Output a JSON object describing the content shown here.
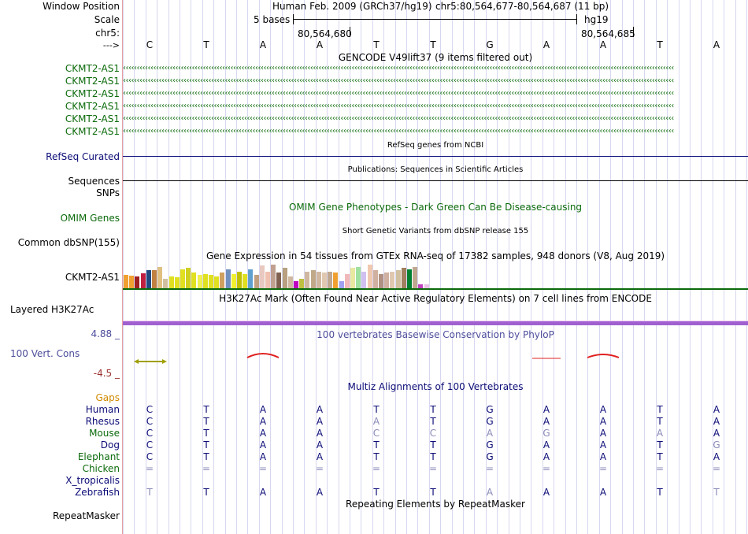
{
  "labels": {
    "window_position": "Window Position",
    "scale": "Scale",
    "chrom": "chr5:",
    "strand": "--->",
    "gencode_rows": [
      "CKMT2-AS1",
      "CKMT2-AS1",
      "CKMT2-AS1",
      "CKMT2-AS1",
      "CKMT2-AS1",
      "CKMT2-AS1"
    ],
    "refseq": "RefSeq Curated",
    "sequences": "Sequences",
    "snps": "SNPs",
    "omim": "OMIM Genes",
    "dbsnp": "Common dbSNP(155)",
    "gtex": "CKMT2-AS1",
    "h3k27ac": "Layered H3K27Ac",
    "phylop_max": "4.88 _",
    "phylop": "100 Vert. Cons",
    "phylop_min": "-4.5 _",
    "gaps": "Gaps",
    "species": [
      "Human",
      "Rhesus",
      "Mouse",
      "Dog",
      "Elephant",
      "Chicken",
      "X_tropicalis",
      "Zebrafish"
    ],
    "repeatmasker": "RepeatMasker"
  },
  "header": {
    "assembly_title": "Human Feb. 2009 (GRCh37/hg19)",
    "position": "chr5:80,564,677-80,564,687 (11 bp)",
    "scale_text": "5 bases",
    "scale_db": "hg19",
    "coord1": "80,564,680",
    "coord2": "80,564,685"
  },
  "bases": [
    "C",
    "T",
    "A",
    "A",
    "T",
    "T",
    "G",
    "A",
    "A",
    "T",
    "A"
  ],
  "tracks": {
    "gencode_title": "GENCODE V49lift37 (9 items filtered out)",
    "arrow_glyph": "‹",
    "refseq_title": "RefSeq genes from NCBI",
    "pubs_title": "Publications: Sequences in Scientific Articles",
    "omim_title": "OMIM Gene Phenotypes - Dark Green Can Be Disease-causing",
    "dbsnp_title": "Short Genetic Variants from dbSNP release 155",
    "gtex_title": "Gene Expression in 54 tissues from GTEx RNA-seq of 17382 samples, 948 donors (V8, Aug 2019)",
    "h3k27ac_title": "H3K27Ac Mark (Often Found Near Active Regulatory Elements) on 7 cell lines from ENCODE",
    "phylop_title": "100 vertebrates Basewise Conservation by PhyloP",
    "multiz_title": "Multiz Alignments of 100 Vertebrates",
    "rmsk_title": "Repeating Elements by RepeatMasker"
  },
  "alignment": [
    [
      "C",
      "T",
      "A",
      "A",
      "T",
      "T",
      "G",
      "A",
      "A",
      "T",
      "A"
    ],
    [
      "C",
      "T",
      "A",
      "A",
      "A",
      "T",
      "G",
      "A",
      "A",
      "T",
      "A"
    ],
    [
      "C",
      "T",
      "A",
      "A",
      "C",
      "C",
      "A",
      "G",
      "A",
      "A",
      "A"
    ],
    [
      "C",
      "T",
      "A",
      "A",
      "T",
      "T",
      "G",
      "A",
      "A",
      "T",
      "G"
    ],
    [
      "C",
      "T",
      "A",
      "A",
      "T",
      "T",
      "G",
      "A",
      "A",
      "T",
      "A"
    ],
    [
      "=",
      "=",
      "=",
      "=",
      "=",
      "=",
      "=",
      "=",
      "=",
      "=",
      "="
    ],
    [
      "",
      "",
      "",
      "",
      "",
      "",
      "",
      "",
      "",
      "",
      ""
    ],
    [
      "T",
      "T",
      "A",
      "A",
      "T",
      "T",
      "A",
      "A",
      "A",
      "T",
      "T"
    ]
  ],
  "alignment_faded": [
    [
      0,
      0,
      0,
      0,
      0,
      0,
      0,
      0,
      0,
      0,
      0
    ],
    [
      0,
      0,
      0,
      0,
      1,
      0,
      0,
      0,
      0,
      0,
      0
    ],
    [
      0,
      0,
      0,
      0,
      1,
      1,
      1,
      1,
      0,
      1,
      0
    ],
    [
      0,
      0,
      0,
      0,
      0,
      0,
      0,
      0,
      0,
      0,
      1
    ],
    [
      0,
      0,
      0,
      0,
      0,
      0,
      0,
      0,
      0,
      0,
      0
    ],
    [
      1,
      1,
      1,
      1,
      1,
      1,
      1,
      1,
      1,
      1,
      1
    ],
    [
      0,
      0,
      0,
      0,
      0,
      0,
      0,
      0,
      0,
      0,
      0
    ],
    [
      1,
      0,
      0,
      0,
      0,
      0,
      1,
      0,
      0,
      0,
      1
    ]
  ],
  "gtex_values": [
    0.55,
    0.52,
    0.5,
    0.62,
    0.78,
    0.75,
    0.9,
    0.4,
    0.5,
    0.48,
    0.8,
    0.85,
    0.65,
    0.55,
    0.6,
    0.55,
    0.5,
    0.68,
    0.8,
    0.6,
    0.7,
    0.6,
    0.8,
    0.55,
    0.95,
    0.7,
    1.0,
    0.65,
    0.85,
    0.5,
    0.3,
    0.4,
    0.7,
    0.78,
    0.7,
    0.65,
    0.7,
    0.65,
    0.3,
    0.6,
    0.85,
    0.9,
    0.7,
    1.0,
    0.75,
    0.6,
    0.65,
    0.7,
    0.78,
    0.85,
    0.8,
    0.9,
    0.15,
    0.15
  ],
  "gtex_colors": [
    "#f0a030",
    "#f0a030",
    "#9f2020",
    "#c02040",
    "#204a80",
    "#c08040",
    "#e0c080",
    "#d0c0a0",
    "#e0e020",
    "#e0e020",
    "#e0e020",
    "#d0d020",
    "#e0e020",
    "#f0f050",
    "#e0e020",
    "#e0e020",
    "#e0e020",
    "#d0a060",
    "#7090c0",
    "#f0f030",
    "#c0c000",
    "#e0e020",
    "#60a0d0",
    "#c0a080",
    "#e8c8c0",
    "#f0c0b0",
    "#c0a090",
    "#806050",
    "#b8a080",
    "#d0b8a0",
    "#c000c0",
    "#c0c040",
    "#d0b8a0",
    "#c0a888",
    "#d0b8a0",
    "#e0c8b0",
    "#c0a890",
    "#f0a030",
    "#a0a0f0",
    "#f0b8b8",
    "#e8e8a0",
    "#a0e0a0",
    "#d0c0f0",
    "#f0c8b0",
    "#d0b0a0",
    "#b09080",
    "#d0b0a0",
    "#e0c8b0",
    "#d0c0a0",
    "#a08060",
    "#008030",
    "#c0a890",
    "#c040c0",
    "#e8c0e8"
  ],
  "colors": {
    "gencode": "#0b6a0b",
    "refseq": "#0c0c78",
    "omim": "#0b6a0b",
    "phylop": "#4d4d9c",
    "phylop_min": "#9c3030",
    "gaps": "#d08a00",
    "species": "#0c0c78",
    "h3k27ac": "#a060d0",
    "phylop_wave": "#e02020",
    "phylop_bar": "#a0a000",
    "faded_base": "#8a8ab8",
    "gencode_green": "#0b6a0b"
  }
}
